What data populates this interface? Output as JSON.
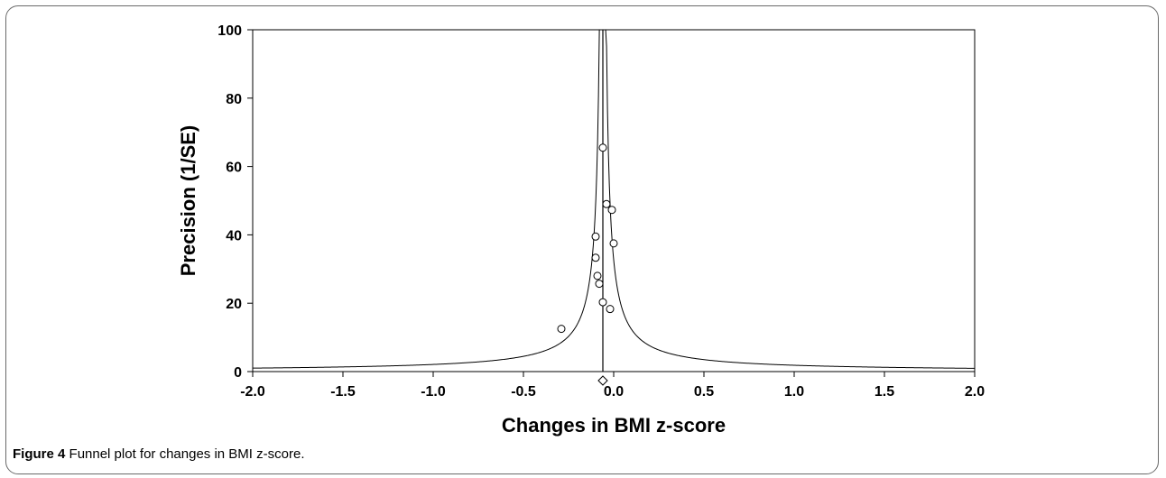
{
  "chart_data": {
    "type": "scatter",
    "title": "",
    "xlabel": "Changes in BMI z-score",
    "ylabel": "Precision (1/SE)",
    "xlim": [
      -2.0,
      2.0
    ],
    "ylim": [
      0,
      100
    ],
    "xticks": [
      "-2.0",
      "-1.5",
      "-1.0",
      "-0.5",
      "0.0",
      "0.5",
      "1.0",
      "1.5",
      "2.0"
    ],
    "yticks": [
      "0",
      "20",
      "40",
      "60",
      "80",
      "100"
    ],
    "pooled_estimate": -0.06,
    "points": [
      {
        "x": -0.06,
        "y": 65.5
      },
      {
        "x": -0.04,
        "y": 49
      },
      {
        "x": -0.01,
        "y": 47.3
      },
      {
        "x": -0.1,
        "y": 39.5
      },
      {
        "x": 0.0,
        "y": 37.5
      },
      {
        "x": -0.1,
        "y": 33.3
      },
      {
        "x": -0.09,
        "y": 28
      },
      {
        "x": -0.08,
        "y": 25.7
      },
      {
        "x": -0.06,
        "y": 20.3
      },
      {
        "x": -0.02,
        "y": 18.3
      },
      {
        "x": -0.29,
        "y": 12.5
      }
    ]
  },
  "caption": {
    "label": "Figure 4",
    "text": " Funnel plot for changes in BMI z-score."
  }
}
